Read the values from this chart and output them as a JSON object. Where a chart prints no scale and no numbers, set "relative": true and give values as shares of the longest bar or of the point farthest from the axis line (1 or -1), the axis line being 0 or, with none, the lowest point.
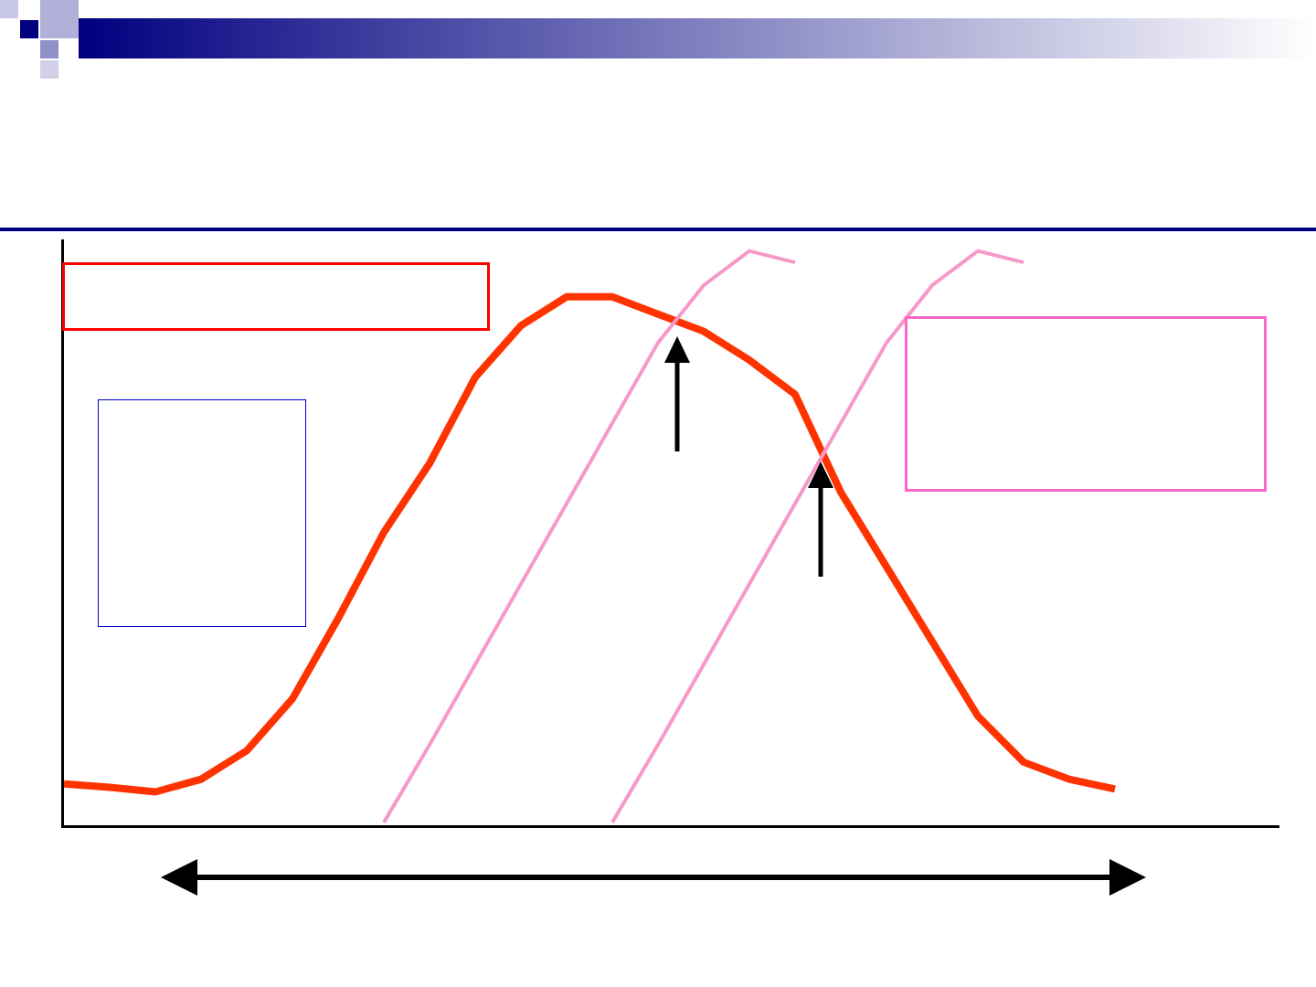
{
  "chart_data": {
    "type": "line",
    "relative": true,
    "grid": false,
    "marker": "none",
    "line_style": "solid",
    "categories": [
      null,
      null,
      null,
      null,
      null,
      null,
      null,
      null,
      null,
      null,
      null,
      null,
      null,
      null,
      null,
      null,
      null,
      null,
      null,
      null,
      null,
      null,
      null,
      null,
      null,
      null,
      null
    ],
    "series": [
      {
        "color": "#ff3300",
        "values": [
          0.072,
          0.066,
          0.058,
          0.08,
          0.13,
          0.22,
          0.36,
          0.51,
          0.63,
          0.78,
          0.87,
          0.92,
          0.92,
          0.89,
          0.86,
          0.81,
          0.75,
          0.58,
          0.45,
          0.32,
          0.19,
          0.11,
          0.08,
          0.063,
          null,
          null,
          null
        ]
      },
      {
        "color": "#f799c8",
        "values": [
          null,
          null,
          null,
          null,
          null,
          null,
          null,
          0.005,
          0.14,
          0.28,
          0.42,
          0.56,
          0.7,
          0.84,
          0.94,
          1,
          0.98,
          null,
          null,
          null,
          null,
          null,
          null,
          null,
          null,
          null,
          null
        ]
      },
      {
        "color": "#f799c8",
        "values": [
          null,
          null,
          null,
          null,
          null,
          null,
          null,
          null,
          null,
          null,
          null,
          null,
          0.005,
          0.14,
          0.28,
          0.42,
          0.56,
          0.7,
          0.84,
          0.94,
          1,
          0.98,
          null,
          null,
          null,
          null,
          null
        ]
      }
    ]
  }
}
